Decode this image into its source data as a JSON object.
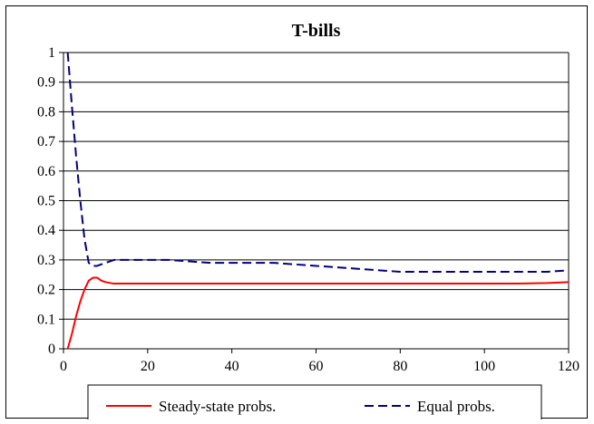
{
  "chart_data": {
    "type": "line",
    "title": "T-bills",
    "xlabel": "",
    "ylabel": "",
    "xlim": [
      0,
      120
    ],
    "ylim": [
      0,
      1
    ],
    "xticks": [
      0,
      20,
      40,
      60,
      80,
      100,
      120
    ],
    "yticks": [
      0,
      0.1,
      0.2,
      0.3,
      0.4,
      0.5,
      0.6,
      0.7,
      0.8,
      0.9,
      1
    ],
    "ytick_labels": [
      "0",
      "0.1",
      "0.2",
      "0.3",
      "0.4",
      "0.5",
      "0.6",
      "0.7",
      "0.8",
      "0.9",
      "1"
    ],
    "xtick_labels": [
      "0",
      "20",
      "40",
      "60",
      "80",
      "100",
      "120"
    ],
    "grid": "horizontal",
    "legend_position": "bottom",
    "series": [
      {
        "name": "Steady-state probs.",
        "color": "#ff0000",
        "style": "solid",
        "x": [
          1,
          2,
          3,
          4,
          5,
          6,
          7,
          8,
          9,
          10,
          12,
          15,
          20,
          40,
          60,
          80,
          100,
          108,
          115,
          120
        ],
        "y": [
          0.0,
          0.05,
          0.11,
          0.16,
          0.2,
          0.23,
          0.24,
          0.24,
          0.23,
          0.225,
          0.22,
          0.22,
          0.22,
          0.22,
          0.22,
          0.22,
          0.22,
          0.22,
          0.222,
          0.225
        ]
      },
      {
        "name": "Equal probs.",
        "color": "#000080",
        "style": "dashed",
        "x": [
          1,
          2,
          3,
          4,
          5,
          6,
          7,
          8,
          10,
          12,
          15,
          20,
          25,
          30,
          35,
          40,
          45,
          50,
          55,
          60,
          65,
          70,
          75,
          80,
          85,
          90,
          95,
          100,
          105,
          110,
          115,
          120
        ],
        "y": [
          1.0,
          0.82,
          0.65,
          0.5,
          0.37,
          0.29,
          0.28,
          0.28,
          0.29,
          0.3,
          0.3,
          0.3,
          0.3,
          0.295,
          0.29,
          0.29,
          0.29,
          0.29,
          0.285,
          0.28,
          0.275,
          0.27,
          0.265,
          0.26,
          0.26,
          0.26,
          0.26,
          0.26,
          0.26,
          0.26,
          0.26,
          0.265
        ]
      }
    ]
  }
}
